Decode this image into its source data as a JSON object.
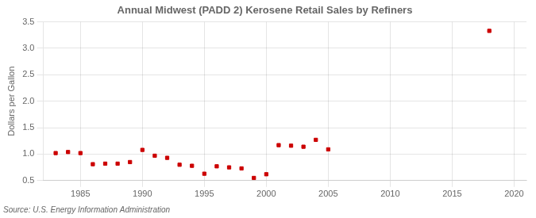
{
  "chart_data": {
    "type": "scatter",
    "title": "Annual Midwest (PADD 2) Kerosene Retail Sales by Refiners",
    "ylabel": "Dollars per Gallon",
    "annotation": "Source: U.S. Energy Information Administration",
    "x": [
      1983,
      1984,
      1985,
      1986,
      1987,
      1988,
      1989,
      1990,
      1991,
      1992,
      1993,
      1994,
      1995,
      1996,
      1997,
      1998,
      1999,
      2000,
      2001,
      2002,
      2003,
      2004,
      2005,
      2018
    ],
    "values": [
      1.02,
      1.04,
      1.02,
      0.81,
      0.82,
      0.82,
      0.85,
      1.08,
      0.97,
      0.93,
      0.8,
      0.78,
      0.63,
      0.77,
      0.75,
      0.73,
      0.55,
      0.62,
      1.17,
      1.16,
      1.14,
      1.27,
      1.09,
      3.33
    ],
    "color": "#cc0000",
    "marker": "square",
    "xlim": [
      1982,
      2021
    ],
    "ylim": [
      0.5,
      3.5
    ],
    "xticks": [
      1985,
      1990,
      1995,
      2000,
      2005,
      2010,
      2015,
      2020
    ],
    "yticks": [
      0.5,
      {
        "value": 1,
        "label": "1.0"
      },
      1.5,
      {
        "value": 2,
        "label": "2.0"
      },
      2.5,
      {
        "value": 3,
        "label": "3.0"
      },
      3.5
    ],
    "grid": true,
    "legend": false
  }
}
